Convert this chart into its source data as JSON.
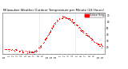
{
  "title": "Milwaukee Weather Outdoor Temperature per Minute (24 Hours)",
  "title_fontsize": 2.8,
  "bg_color": "#ffffff",
  "line_color": "#ff0000",
  "grid_color": "#bbbbbb",
  "ylim": [
    10,
    75
  ],
  "yticks": [
    20,
    30,
    40,
    50,
    60,
    70
  ],
  "ytick_labels": [
    "20",
    "30",
    "40",
    "50",
    "60",
    "70"
  ],
  "legend_label": "Outdoor Temp",
  "legend_color": "#ff0000",
  "vline_x": [
    8.0,
    16.5
  ],
  "x_hours": [
    0,
    1,
    2,
    3,
    4,
    5,
    6,
    7,
    8,
    9,
    10,
    11,
    12,
    13,
    14,
    15,
    16,
    17,
    18,
    19,
    20,
    21,
    22,
    23
  ],
  "x_labels": [
    "12",
    "1",
    "2",
    "3",
    "4",
    "5",
    "6",
    "7",
    "8",
    "9",
    "10",
    "11",
    "12",
    "1",
    "2",
    "3",
    "4",
    "5",
    "6",
    "7",
    "8",
    "9",
    "10",
    "11"
  ],
  "temp_values": [
    18,
    17,
    16,
    15,
    14,
    13,
    13,
    14,
    18,
    27,
    38,
    50,
    60,
    66,
    68,
    65,
    60,
    54,
    47,
    41,
    35,
    29,
    25,
    22
  ]
}
